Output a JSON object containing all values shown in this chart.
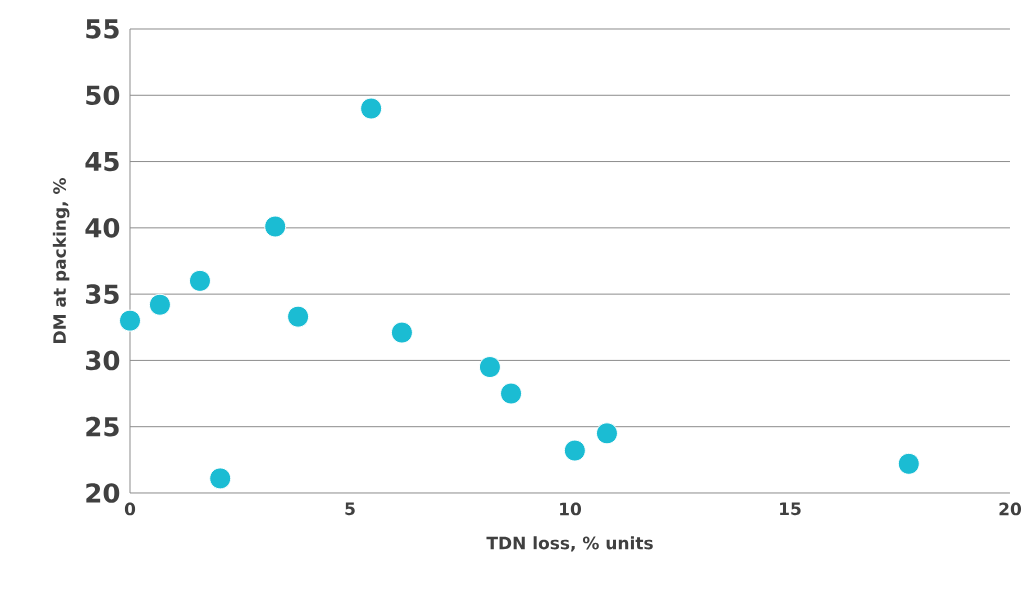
{
  "chart_data": {
    "type": "scatter",
    "xlabel": "TDN loss, % units",
    "ylabel": "DM at packing, %",
    "series": [
      {
        "color": "#1bbcd3",
        "x": [
          0,
          0.68,
          1.59,
          2.05,
          3.3,
          3.82,
          5.48,
          6.18,
          8.18,
          8.66,
          10.11,
          10.84,
          17.7
        ],
        "values": [
          33.0,
          34.2,
          36.0,
          21.1,
          40.1,
          33.3,
          49.0,
          32.1,
          29.5,
          27.5,
          23.2,
          24.5,
          22.2
        ]
      }
    ],
    "xlim": [
      0,
      20
    ],
    "ylim": [
      20,
      55
    ],
    "xticks": [
      0,
      5,
      10,
      15,
      20
    ],
    "yticks": [
      20,
      25,
      30,
      35,
      40,
      45,
      50,
      55
    ],
    "grid": "y",
    "marker": "circle"
  }
}
